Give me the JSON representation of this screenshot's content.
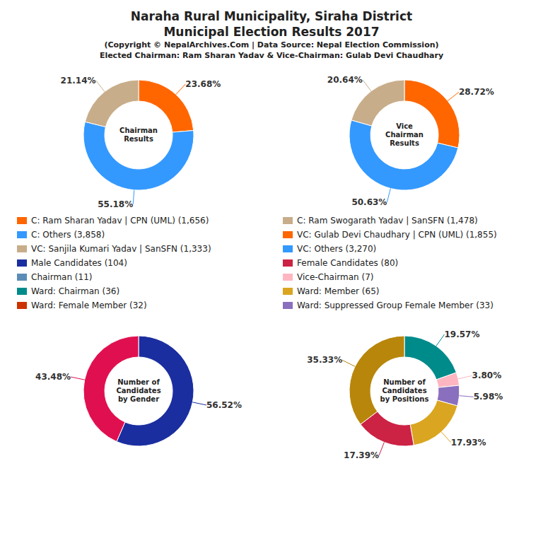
{
  "title": "Naraha Rural Municipality, Siraha District\nMunicipal Election Results 2017",
  "subtitle": "(Copyright © NepalArchives.Com | Data Source: Nepal Election Commission)\nElected Chairman: Ram Sharan Yadav & Vice-Chairman: Gulab Devi Chaudhary",
  "chart_data": [
    {
      "type": "pie",
      "title": "Chairman\nResults",
      "values": [
        23.68,
        55.18,
        21.14
      ],
      "colors": [
        "#FF6600",
        "#3399FF",
        "#C8AD8A"
      ],
      "value_labels": [
        "23.68%",
        "55.18%",
        "21.14%"
      ],
      "data_labels": true
    },
    {
      "type": "pie",
      "title": "Vice\nChairman\nResults",
      "values": [
        28.72,
        50.63,
        20.64
      ],
      "colors": [
        "#FF6600",
        "#3399FF",
        "#C8AD8A"
      ],
      "value_labels": [
        "28.72%",
        "50.63%",
        "20.64%"
      ],
      "data_labels": true
    },
    {
      "type": "pie",
      "title": "Number of\nCandidates\nby Gender",
      "values": [
        56.52,
        43.48
      ],
      "colors": [
        "#1A2EA0",
        "#E01050"
      ],
      "value_labels": [
        "56.52%",
        "43.48%"
      ],
      "data_labels": true
    },
    {
      "type": "pie",
      "title": "Number of\nCandidates\nby Positions",
      "values": [
        19.57,
        3.8,
        5.98,
        17.93,
        17.39,
        35.33
      ],
      "colors": [
        "#008B8B",
        "#FFB6C1",
        "#8A6FBF",
        "#DAA520",
        "#CC2244",
        "#B8860B"
      ],
      "value_labels": [
        "19.57%",
        "3.80%",
        "5.98%",
        "17.93%",
        "17.39%",
        "35.33%"
      ],
      "data_labels": true
    }
  ],
  "legend_entries": [
    {
      "name": "C: Ram Sharan Yadav | CPN (UML) (1,656)",
      "color": "#FF6600"
    },
    {
      "name": "C: Others (3,858)",
      "color": "#3399FF"
    },
    {
      "name": "VC: Sanjila Kumari Yadav | SanSFN (1,333)",
      "color": "#C8AD8A"
    },
    {
      "name": "Male Candidates (104)",
      "color": "#1A2EA0"
    },
    {
      "name": "Chairman (11)",
      "color": "#5B8DB8"
    },
    {
      "name": "Ward: Chairman (36)",
      "color": "#008B8B"
    },
    {
      "name": "Ward: Female Member (32)",
      "color": "#CC3300"
    },
    {
      "name": "C: Ram Swogarath Yadav | SanSFN (1,478)",
      "color": "#C8AD8A"
    },
    {
      "name": "VC: Gulab Devi Chaudhary | CPN (UML) (1,855)",
      "color": "#FF6600"
    },
    {
      "name": "VC: Others (3,270)",
      "color": "#3399FF"
    },
    {
      "name": "Female Candidates (80)",
      "color": "#CC2244"
    },
    {
      "name": "Vice-Chairman (7)",
      "color": "#FFB6C1"
    },
    {
      "name": "Ward: Member (65)",
      "color": "#DAA520"
    },
    {
      "name": "Ward: Suppressed Group Female Member (33)",
      "color": "#8A6FBF"
    }
  ]
}
